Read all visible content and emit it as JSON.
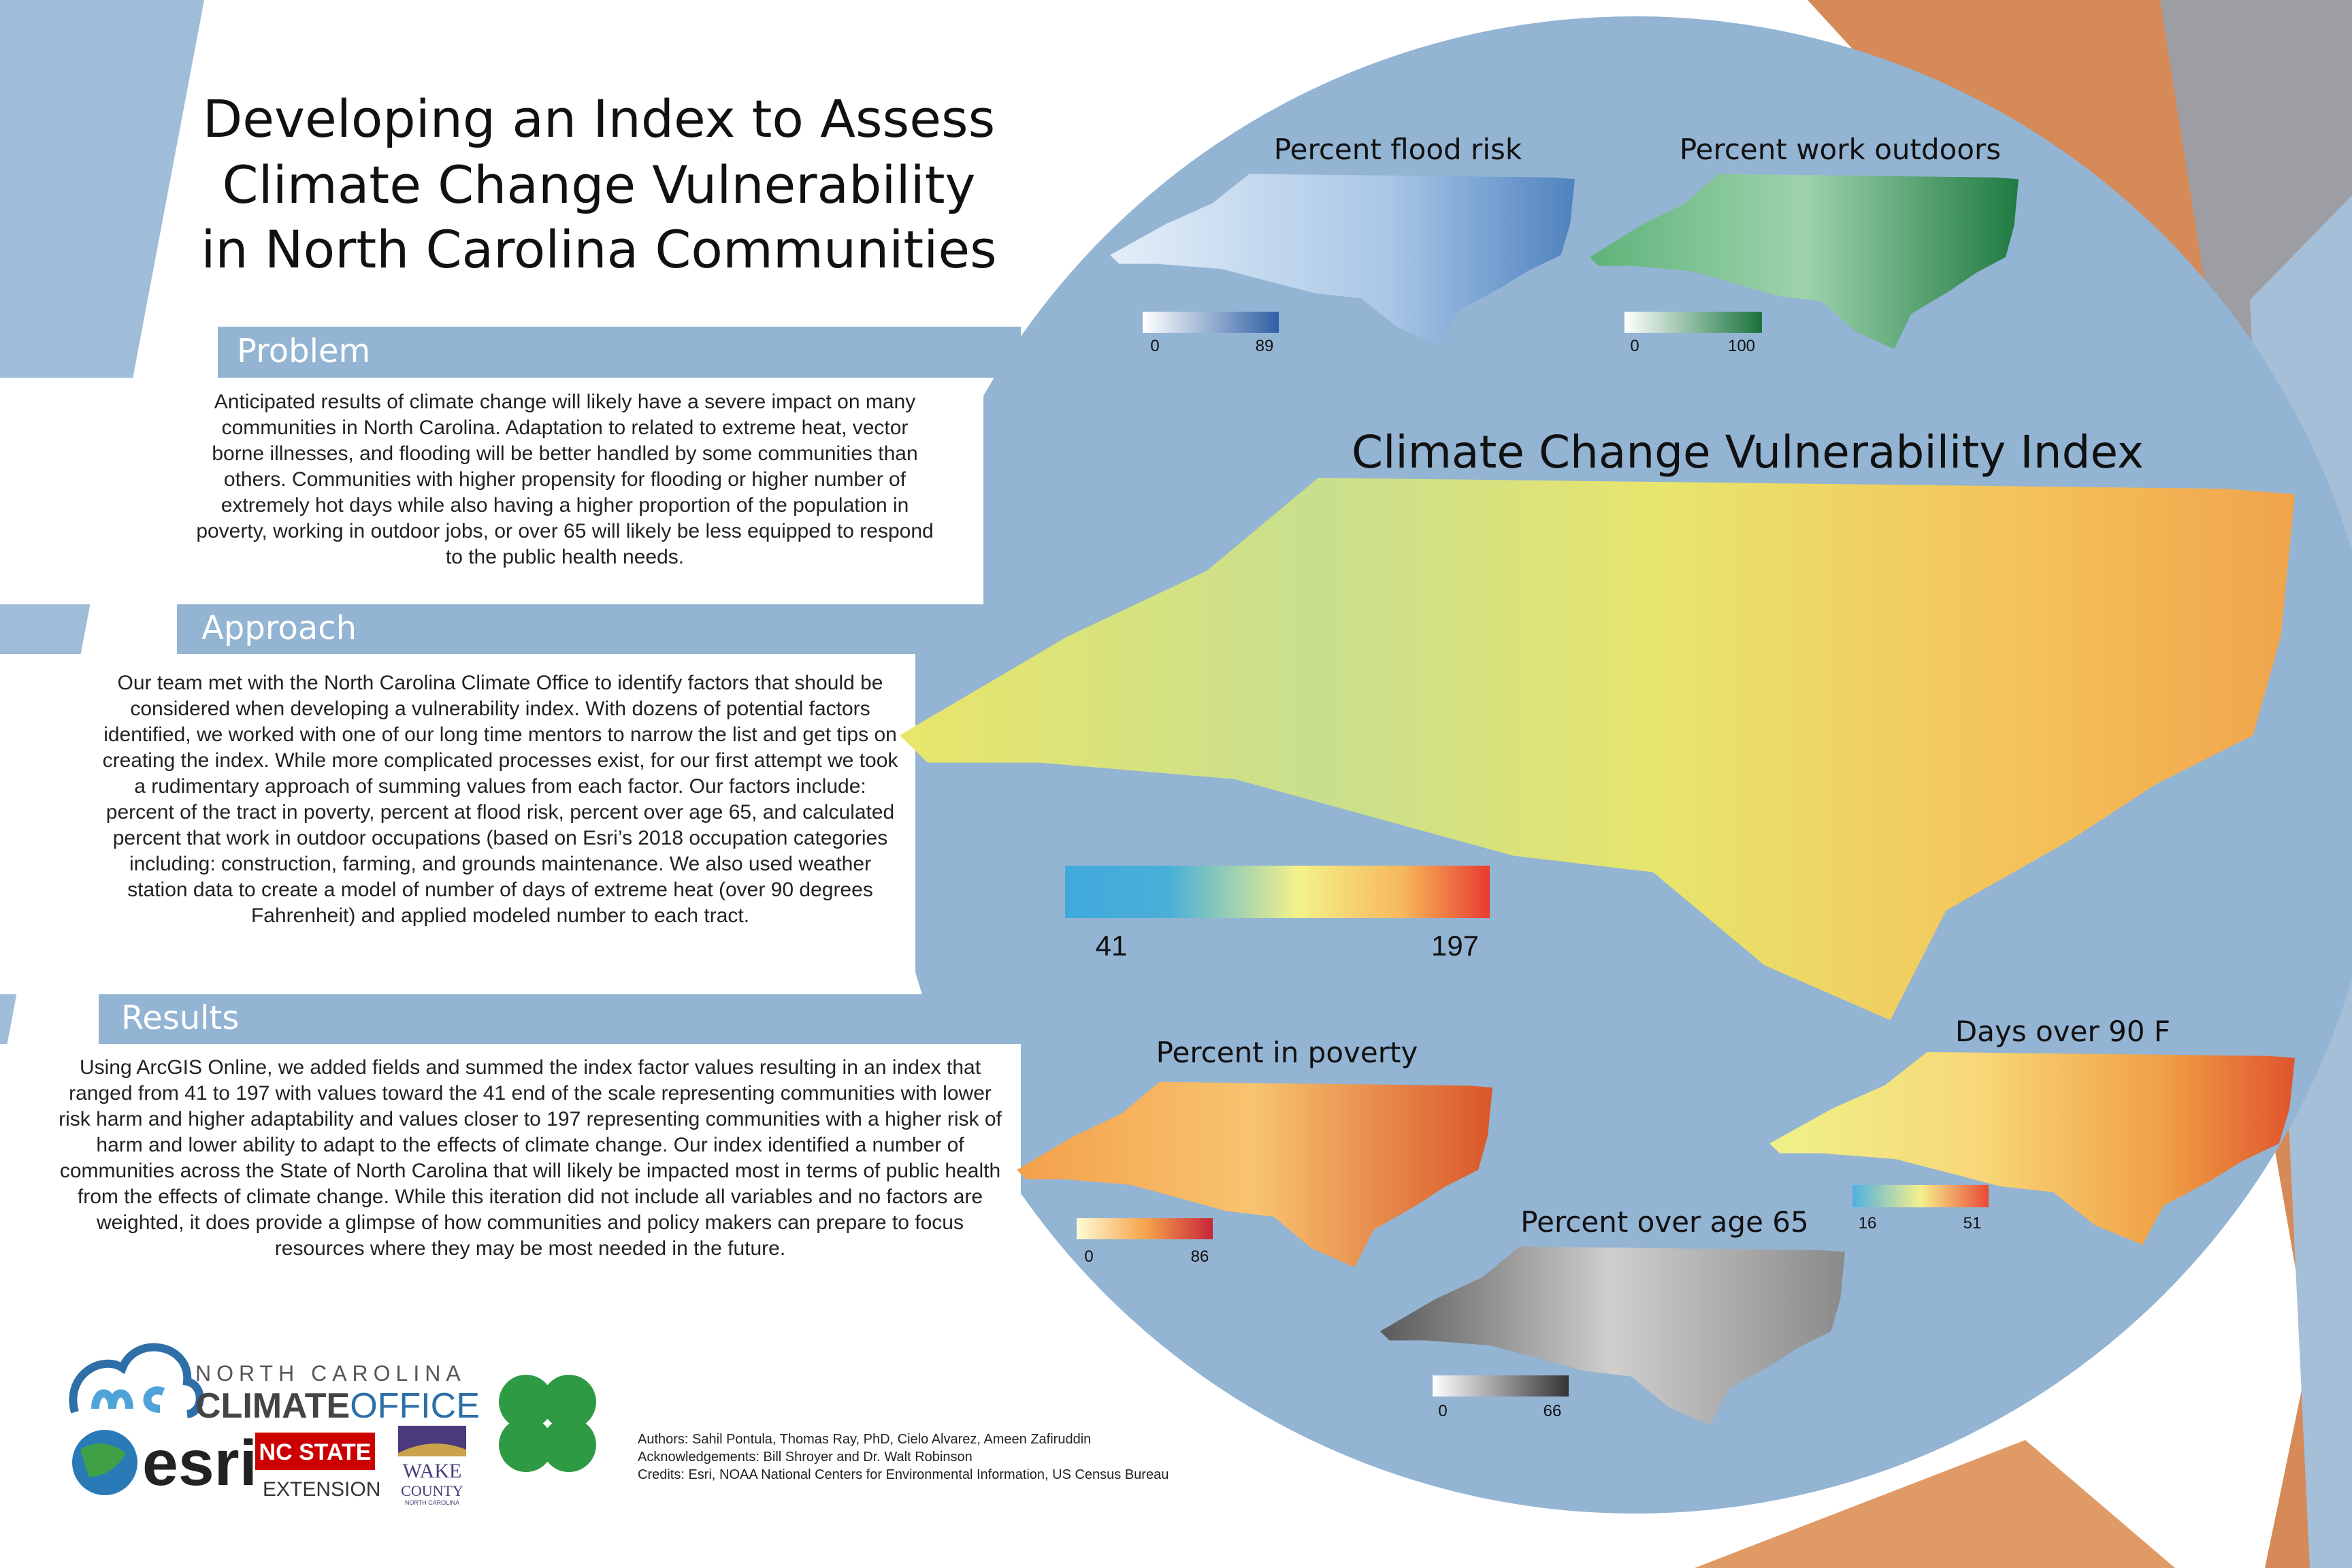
{
  "header": {
    "title_lines": [
      "Developing an Index to Assess",
      "Climate Change Vulnerability",
      "in North Carolina Communities"
    ]
  },
  "sections": [
    {
      "heading": "Problem",
      "body": "Anticipated results of climate change will likely have a severe impact on many communities in North Carolina. Adaptation to related to extreme heat, vector borne illnesses, and flooding will be better handled by some communities than others. Communities with higher propensity for flooding or higher number of extremely hot days while also having a higher proportion of the population in poverty, working in outdoor jobs, or over 65 will likely be less equipped to respond to the public health needs."
    },
    {
      "heading": "Approach",
      "body": "Our team met with the North Carolina Climate Office to identify factors that should be considered when developing a vulnerability index. With dozens of potential factors identified, we worked with one of our long time mentors to narrow the list and get tips on creating the index. While more complicated processes exist, for our first attempt we took a rudimentary approach of summing values from each factor. Our factors include: percent of the tract in poverty, percent at flood risk, percent over age 65, and calculated percent that work in outdoor occupations (based on Esri’s 2018 occupation categories including: construction, farming, and grounds maintenance. We also used weather station data to create a model of number of days of extreme heat (over 90 degrees Fahrenheit) and applied modeled number to each tract."
    },
    {
      "heading": "Results",
      "body": "Using ArcGIS Online, we added fields and summed the index factor values resulting in an index that ranged from 41 to 197 with values toward the 41 end of the scale representing communities with lower risk harm and higher adaptability and values closer to 197 representing communities with a higher risk of harm and lower ability to adapt to the effects of climate change. Our index identified a number of communities across the State of North Carolina that will likely be impacted most in terms of public health from the effects of climate change. While this iteration did not include all variables and no factors are weighted, it does provide a glimpse of how communities and policy makers can prepare to focus resources where they may be most needed in the future."
    }
  ],
  "main_map": {
    "title": "Climate Change Vulnerability Index",
    "legend": [
      "41",
      "197"
    ]
  },
  "maps": [
    {
      "title": "Percent flood risk",
      "legend": [
        "0",
        "89"
      ]
    },
    {
      "title": "Percent work outdoors",
      "legend": [
        "0",
        "100"
      ]
    },
    {
      "title": "Percent in poverty",
      "legend": [
        "0",
        "86"
      ]
    },
    {
      "title": "Days over 90 F",
      "legend": [
        "16",
        "51"
      ]
    },
    {
      "title": "Percent over age 65",
      "legend": [
        "0",
        "66"
      ]
    }
  ],
  "logos": {
    "nc_top": "NORTH CAROLINA",
    "climate": "CLIMATE",
    "office": "OFFICE",
    "esri": "esri",
    "ncstate": "NC STATE",
    "extension": "EXTENSION",
    "wake": "WAKE",
    "county": "COUNTY",
    "wake_state": "NORTH CAROLINA"
  },
  "credits": [
    "Authors: Sahil Pontula, Thomas Ray, PhD, Cielo Alvarez, Ameen Zafiruddin",
    "Acknowledgements: Bill Shroyer and Dr. Walt Robinson",
    "Credits: Esri, NOAA National Centers for Environmental Information, US Census Bureau"
  ]
}
